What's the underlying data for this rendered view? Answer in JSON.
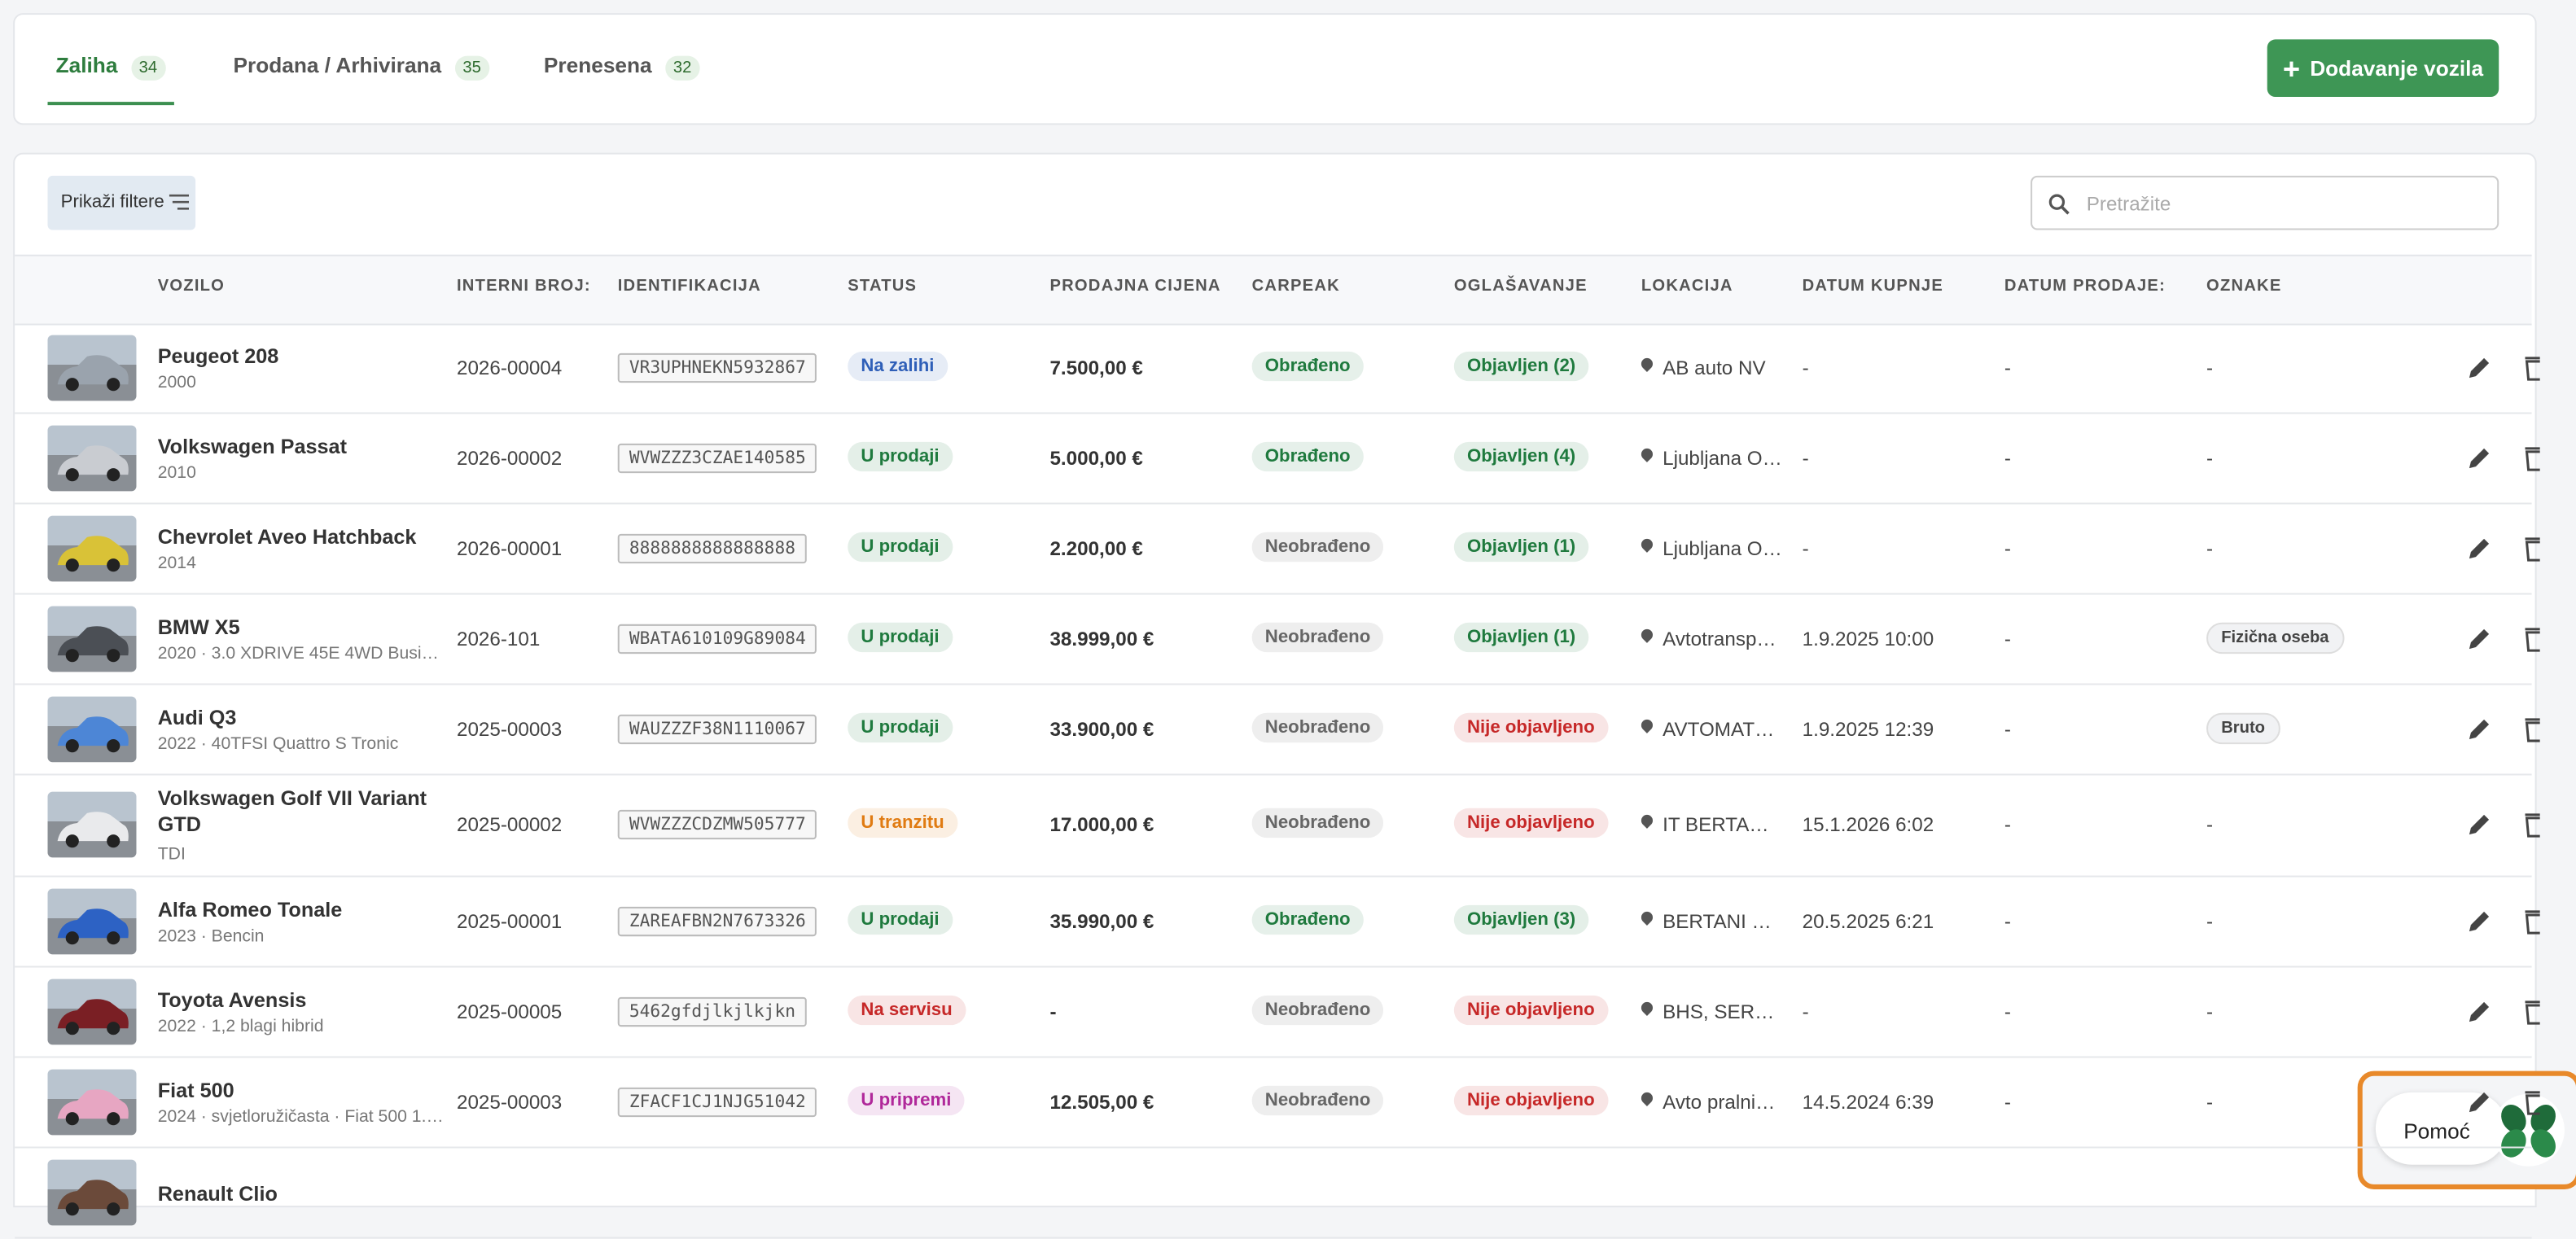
{
  "tabs": [
    {
      "label": "Zaliha",
      "count": "34"
    },
    {
      "label": "Prodana / Arhivirana",
      "count": "35"
    },
    {
      "label": "Prenesena",
      "count": "32"
    }
  ],
  "add_button": "Dodavanje vozila",
  "filter_button": "Prikaži filtere",
  "search_placeholder": "Pretražite",
  "table": {
    "headers": [
      "VOZILO",
      "INTERNI BROJ:",
      "IDENTIFIKACIJA",
      "STATUS",
      "PRODAJNA CIJENA",
      "CARPEAK",
      "OGLAŠAVANJE",
      "LOKACIJA",
      "DATUM KUPNJE",
      "DATUM PRODAJE:",
      "OZNAKE"
    ],
    "rows": [
      {
        "name": "Peugeot 208",
        "detail": "2000",
        "internal": "2026-00004",
        "vin": "VR3UPHNEKN5932867",
        "status": "Na zalihi",
        "status_color": "#2f5fb8",
        "price": "7.500,00 €",
        "carpeak": "Obrađeno",
        "carpeak_color": "#1f7a3e",
        "ads": "Objavljen (2)",
        "ads_color": "#1f7a3e",
        "location": "AB auto NV",
        "bought": "-",
        "sold": "-",
        "tags": "-"
      },
      {
        "name": "Volkswagen Passat",
        "detail": "2010",
        "internal": "2026-00002",
        "vin": "WVWZZZ3CZAE140585",
        "status": "U prodaji",
        "status_color": "#1f7a3e",
        "price": "5.000,00 €",
        "carpeak": "Obrađeno",
        "carpeak_color": "#1f7a3e",
        "ads": "Objavljen (4)",
        "ads_color": "#1f7a3e",
        "location": "Ljubljana O…",
        "bought": "-",
        "sold": "-",
        "tags": "-"
      },
      {
        "name": "Chevrolet Aveo Hatchback",
        "detail": "2014",
        "internal": "2026-00001",
        "vin": "8888888888888888",
        "status": "U prodaji",
        "status_color": "#1f7a3e",
        "price": "2.200,00 €",
        "carpeak": "Neobrađeno",
        "carpeak_color": "#666666",
        "ads": "Objavljen (1)",
        "ads_color": "#1f7a3e",
        "location": "Ljubljana O…",
        "bought": "-",
        "sold": "-",
        "tags": "-"
      },
      {
        "name": "BMW X5",
        "detail": "2020 · 3.0 XDRIVE 45E 4WD Busi…",
        "internal": "2026-101",
        "vin": "WBATA610109G89084",
        "status": "U prodaji",
        "status_color": "#1f7a3e",
        "price": "38.999,00 €",
        "carpeak": "Neobrađeno",
        "carpeak_color": "#666666",
        "ads": "Objavljen (1)",
        "ads_color": "#1f7a3e",
        "location": "Avtotransp…",
        "bought": "1.9.2025 10:00",
        "sold": "-",
        "tags": "Fizična oseba"
      },
      {
        "name": "Audi Q3",
        "detail": "2022 · 40TFSI Quattro S Tronic",
        "internal": "2025-00003",
        "vin": "WAUZZZF38N1110067",
        "status": "U prodaji",
        "status_color": "#1f7a3e",
        "price": "33.900,00 €",
        "carpeak": "Neobrađeno",
        "carpeak_color": "#666666",
        "ads": "Nije objavljeno",
        "ads_color": "#c62828",
        "location": "AVTOMAT…",
        "bought": "1.9.2025 12:39",
        "sold": "-",
        "tags": "Bruto"
      },
      {
        "name": "Volkswagen Golf VII Variant GTD",
        "detail": "TDI",
        "internal": "2025-00002",
        "vin": "WVWZZZCDZMW505777",
        "status": "U tranzitu",
        "status_color": "#e07b12",
        "price": "17.000,00 €",
        "carpeak": "Neobrađeno",
        "carpeak_color": "#666666",
        "ads": "Nije objavljeno",
        "ads_color": "#c62828",
        "location": "IT BERTA…",
        "bought": "15.1.2026 6:02",
        "sold": "-",
        "tags": "-"
      },
      {
        "name": "Alfa Romeo Tonale",
        "detail": "2023 · Bencin",
        "internal": "2025-00001",
        "vin": "ZAREAFBN2N7673326",
        "status": "U prodaji",
        "status_color": "#1f7a3e",
        "price": "35.990,00 €",
        "carpeak": "Obrađeno",
        "carpeak_color": "#1f7a3e",
        "ads": "Objavljen (3)",
        "ads_color": "#1f7a3e",
        "location": "BERTANI …",
        "bought": "20.5.2025 6:21",
        "sold": "-",
        "tags": "-"
      },
      {
        "name": "Toyota Avensis",
        "detail": "2022 · 1,2 blagi hibrid",
        "internal": "2025-00005",
        "vin": "5462gfdjlkjlkjkn",
        "status": "Na servisu",
        "status_color": "#c62828",
        "price": "-",
        "carpeak": "Neobrađeno",
        "carpeak_color": "#666666",
        "ads": "Nije objavljeno",
        "ads_color": "#c62828",
        "location": "BHS, SER…",
        "bought": "-",
        "sold": "-",
        "tags": "-"
      },
      {
        "name": "Fiat 500",
        "detail": "2024 · svjetloružičasta · Fiat 500 1.…",
        "internal": "2025-00003",
        "vin": "ZFACF1CJ1NJG51042",
        "status": "U pripremi",
        "status_color": "#b0289a",
        "price": "12.505,00 €",
        "carpeak": "Neobrađeno",
        "carpeak_color": "#666666",
        "ads": "Nije objavljeno",
        "ads_color": "#c62828",
        "location": "Avto pralni…",
        "bought": "14.5.2024 6:39",
        "sold": "-",
        "tags": "-"
      },
      {
        "name": "Renault Clio"
      }
    ]
  },
  "help": "Pomoć"
}
